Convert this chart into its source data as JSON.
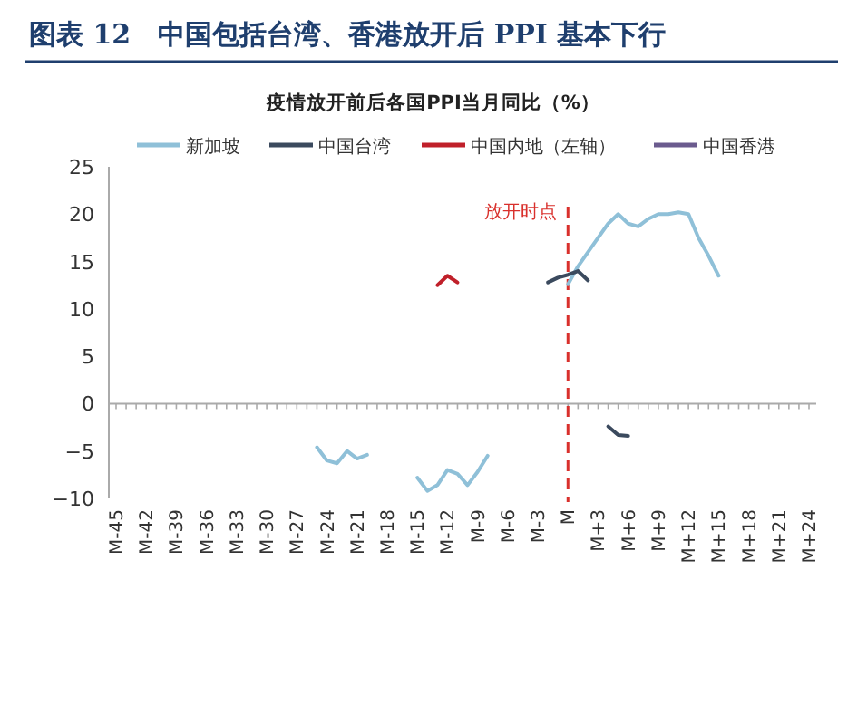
{
  "chart_data": {
    "type": "line",
    "title": "图表 12　中国包括台湾、香港放开后 PPI 基本下行",
    "subtitle": "疫情放开前后各国PPI当月同比（%）",
    "categories": [
      "M-45",
      null,
      null,
      "M-42",
      null,
      null,
      "M-39",
      null,
      null,
      "M-36",
      null,
      null,
      "M-33",
      null,
      null,
      "M-30",
      null,
      null,
      "M-27",
      null,
      null,
      "M-24",
      null,
      null,
      "M-21",
      null,
      null,
      "M-18",
      null,
      null,
      "M-15",
      null,
      null,
      "M-12",
      null,
      null,
      "M-9",
      null,
      null,
      "M-6",
      null,
      null,
      "M-3",
      null,
      null,
      "M",
      null,
      null,
      "M+3",
      null,
      null,
      "M+6",
      null,
      null,
      "M+9",
      null,
      null,
      "M+12",
      null,
      null,
      "M+15",
      null,
      null,
      "M+18",
      null,
      null,
      "M+21",
      null,
      null,
      "M+24"
    ],
    "series": [
      {
        "name": "新加坡",
        "color": "#8fc0d8",
        "values": [
          null,
          null,
          null,
          null,
          null,
          null,
          null,
          null,
          null,
          null,
          null,
          null,
          null,
          null,
          null,
          null,
          null,
          null,
          null,
          null,
          -4.6,
          -6.0,
          -6.3,
          -5.0,
          -5.8,
          -5.4,
          null,
          null,
          null,
          null,
          -7.8,
          -9.2,
          -8.6,
          -7.0,
          -7.4,
          -8.6,
          -7.2,
          -5.5,
          null,
          null,
          null,
          null,
          null,
          null,
          null,
          12.6,
          14.5,
          16.0,
          17.5,
          19.0,
          20.0,
          19.0,
          18.7,
          19.5,
          20.0,
          20.0,
          20.2,
          20.0,
          17.5,
          15.6,
          13.5,
          null,
          null,
          null,
          null,
          null,
          null,
          null,
          null,
          null
        ]
      },
      {
        "name": "中国台湾",
        "color": "#3b4a5e",
        "values": [
          null,
          null,
          null,
          null,
          null,
          null,
          null,
          null,
          null,
          null,
          null,
          null,
          null,
          null,
          null,
          null,
          null,
          null,
          null,
          null,
          null,
          null,
          null,
          null,
          null,
          null,
          null,
          null,
          null,
          null,
          null,
          null,
          null,
          null,
          null,
          null,
          null,
          null,
          null,
          null,
          null,
          null,
          null,
          12.8,
          13.3,
          13.6,
          14.0,
          13.0,
          null,
          -2.4,
          -3.3,
          -3.4,
          null,
          null,
          null,
          null,
          null,
          null,
          null,
          null,
          null,
          null,
          null,
          null,
          null,
          null,
          null,
          null,
          null,
          null
        ]
      },
      {
        "name": "中国内地（左轴）",
        "color": "#c0202a",
        "values": [
          null,
          null,
          null,
          null,
          null,
          null,
          null,
          null,
          null,
          null,
          null,
          null,
          null,
          null,
          null,
          null,
          null,
          null,
          null,
          null,
          null,
          null,
          null,
          null,
          null,
          null,
          null,
          null,
          null,
          null,
          null,
          null,
          12.5,
          13.5,
          12.8,
          null,
          null,
          null,
          null,
          null,
          null,
          null,
          null,
          null,
          null,
          null,
          null,
          null,
          null,
          null,
          null,
          null,
          null,
          null,
          null,
          null,
          null,
          null,
          null,
          null,
          null,
          null,
          null,
          null,
          null,
          null,
          null,
          null,
          null,
          null
        ]
      },
      {
        "name": "中国香港",
        "color": "#6b5b8e",
        "values": [
          null,
          null,
          null,
          null,
          null,
          null,
          null,
          null,
          null,
          null,
          null,
          null,
          null,
          null,
          null,
          null,
          null,
          null,
          null,
          null,
          null,
          null,
          null,
          null,
          null,
          null,
          null,
          null,
          null,
          null,
          null,
          null,
          null,
          null,
          null,
          null,
          null,
          null,
          null,
          null,
          null,
          null,
          null,
          null,
          null,
          null,
          null,
          null,
          null,
          null,
          null,
          null,
          null,
          null,
          null,
          null,
          null,
          null,
          null,
          null,
          null,
          null,
          null,
          null,
          null,
          null,
          null,
          null,
          null,
          null
        ]
      }
    ],
    "ylim": [
      -10,
      25
    ],
    "yticks": [
      -10,
      -5,
      0,
      5,
      10,
      15,
      20,
      25
    ],
    "ref_lines": [
      {
        "axis": "x",
        "value": "M",
        "label": "放开时点",
        "color": "#d9302c",
        "line_style": "dashed"
      }
    ],
    "grid": false,
    "legend": "top",
    "marker": "none",
    "line_style": "solid"
  }
}
